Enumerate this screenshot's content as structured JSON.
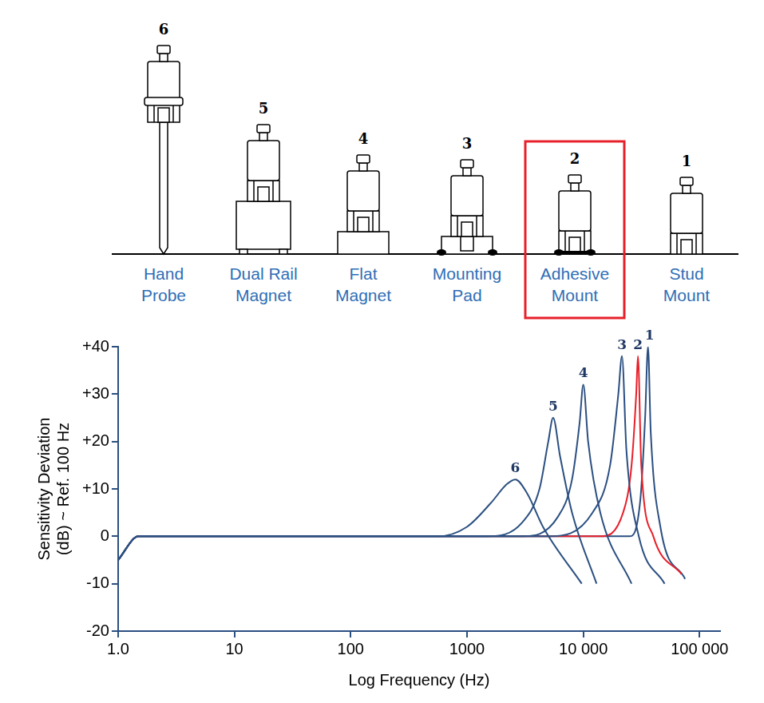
{
  "diagram": {
    "highlight_color": "#e8202a",
    "mounts": [
      {
        "number": 6,
        "label": "Hand Probe"
      },
      {
        "number": 5,
        "label": "Dual Rail Magnet"
      },
      {
        "number": 4,
        "label": "Flat Magnet"
      },
      {
        "number": 3,
        "label": "Mounting Pad"
      },
      {
        "number": 2,
        "label": "Adhesive Mount",
        "highlighted": true
      },
      {
        "number": 1,
        "label": "Stud Mount"
      }
    ]
  },
  "chart_data": {
    "type": "line",
    "x_label": "Log Frequency (Hz)",
    "y_label": "Sensitivity Deviation (dB) ~ Ref. 100 Hz",
    "log": "x",
    "grid": false,
    "xlim": [
      1,
      150000
    ],
    "xticks": [
      {
        "value": 1,
        "label": "1.0"
      },
      10,
      100,
      {
        "value": 1000,
        "label": "1000"
      },
      {
        "value": 10000,
        "label": "10 000"
      },
      {
        "value": 100000,
        "label": "100 000"
      }
    ],
    "ylim": [
      -20,
      40
    ],
    "yticks": [
      {
        "value": 40,
        "label": "+40"
      },
      {
        "value": 30,
        "label": "+30"
      },
      {
        "value": 20,
        "label": "+20"
      },
      {
        "value": 10,
        "label": "+10"
      },
      0,
      -10,
      -20
    ],
    "series": [
      {
        "name": "6",
        "color": "#2b4f81",
        "x": [
          1,
          1.5,
          560,
          1000,
          1600,
          2200,
          2600,
          3300,
          4500,
          9700
        ],
        "values": [
          -5,
          0,
          0,
          2,
          7,
          11,
          12,
          9,
          2,
          -10
        ]
      },
      {
        "name": "5",
        "color": "#2b4f81",
        "x": [
          1,
          1.5,
          1500,
          3000,
          4200,
          5000,
          5500,
          6300,
          8000,
          13000
        ],
        "values": [
          -5,
          0,
          0,
          3,
          10,
          20,
          25,
          17,
          5,
          -10
        ]
      },
      {
        "name": "4",
        "color": "#2b4f81",
        "x": [
          1,
          1.5,
          3000,
          6000,
          8000,
          9300,
          10000,
          11000,
          14000,
          26000
        ],
        "values": [
          -5,
          0,
          0,
          4,
          12,
          24,
          32,
          20,
          5,
          -10
        ]
      },
      {
        "name": "3",
        "color": "#2b4f81",
        "x": [
          1,
          1.5,
          5000,
          12000,
          17000,
          20000,
          21500,
          23500,
          30000,
          50000
        ],
        "values": [
          -5,
          0,
          0,
          5,
          15,
          30,
          38,
          18,
          0,
          -10
        ]
      },
      {
        "name": "2",
        "color": "#e8202a",
        "x": [
          1,
          1.5,
          14000,
          22000,
          26000,
          28500,
          29500,
          31500,
          40000,
          70000
        ],
        "values": [
          -5,
          0,
          0,
          5,
          15,
          30,
          38,
          15,
          0,
          -8
        ]
      },
      {
        "name": "1",
        "color": "#2b4f81",
        "x": [
          1,
          1.5,
          25000,
          31000,
          34000,
          36000,
          38000,
          46000,
          75000
        ],
        "values": [
          -5,
          0,
          0,
          8,
          25,
          40,
          22,
          2,
          -9
        ]
      }
    ]
  }
}
